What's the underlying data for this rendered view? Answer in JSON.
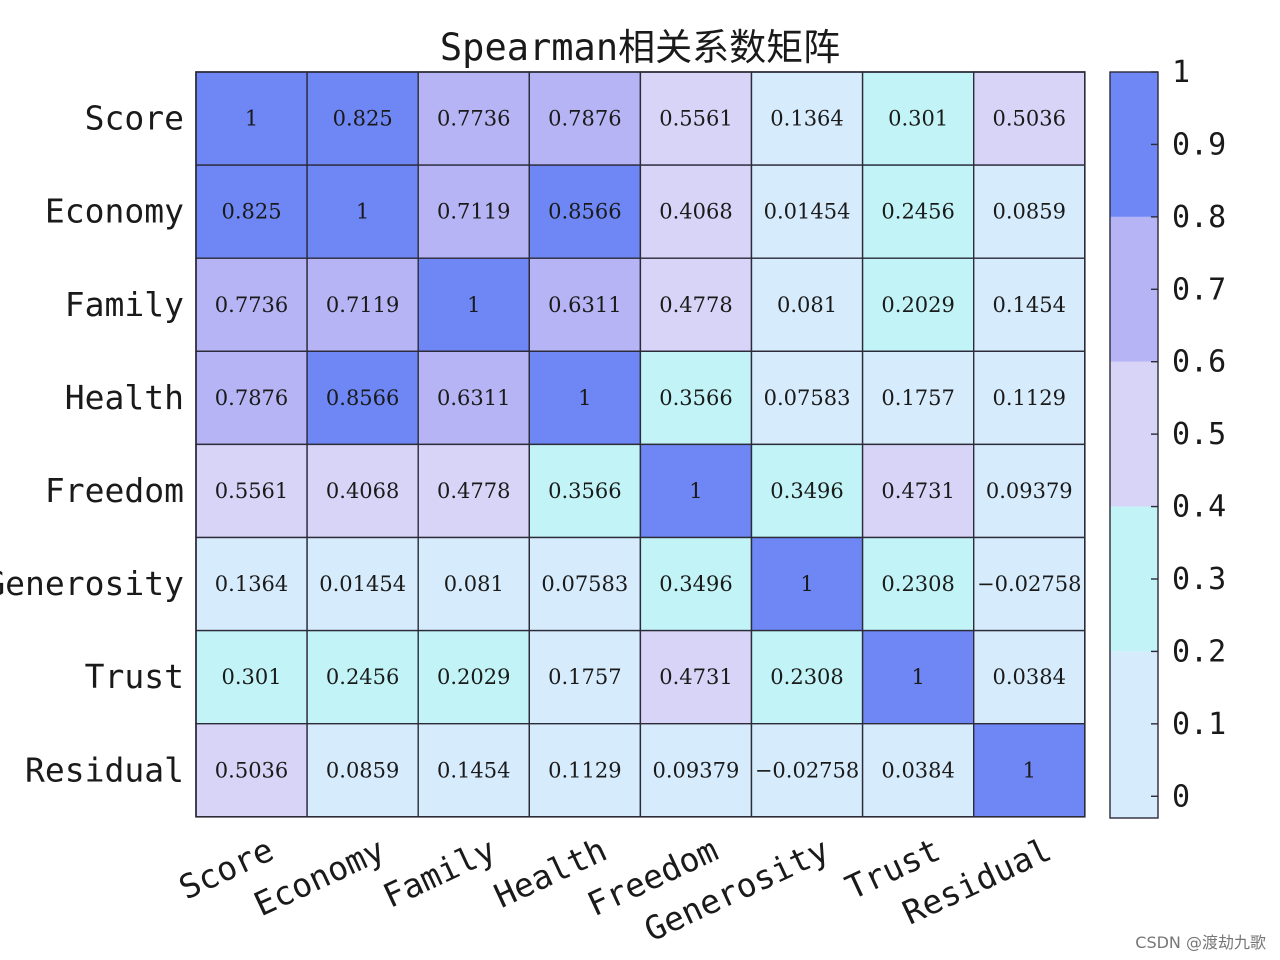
{
  "chart_data": {
    "type": "heatmap",
    "title": "Spearman相关系数矩阵",
    "rows": [
      "Score",
      "Economy",
      "Family",
      "Health",
      "Freedom",
      "Generosity",
      "Trust",
      "Residual"
    ],
    "columns": [
      "Score",
      "Economy",
      "Family",
      "Health",
      "Freedom",
      "Generosity",
      "Trust",
      "Residual"
    ],
    "values": [
      [
        1,
        0.825,
        0.7736,
        0.7876,
        0.5561,
        0.1364,
        0.301,
        0.5036
      ],
      [
        0.825,
        1,
        0.7119,
        0.8566,
        0.4068,
        0.01454,
        0.2456,
        0.0859
      ],
      [
        0.7736,
        0.7119,
        1,
        0.6311,
        0.4778,
        0.081,
        0.2029,
        0.1454
      ],
      [
        0.7876,
        0.8566,
        0.6311,
        1,
        0.3566,
        0.07583,
        0.1757,
        0.1129
      ],
      [
        0.5561,
        0.4068,
        0.4778,
        0.3566,
        1,
        0.3496,
        0.4731,
        0.09379
      ],
      [
        0.1364,
        0.01454,
        0.081,
        0.07583,
        0.3496,
        1,
        0.2308,
        -0.02758
      ],
      [
        0.301,
        0.2456,
        0.2029,
        0.1757,
        0.4731,
        0.2308,
        1,
        0.0384
      ],
      [
        0.5036,
        0.0859,
        0.1454,
        0.1129,
        0.09379,
        -0.02758,
        0.0384,
        1
      ]
    ],
    "display_values": [
      [
        "1",
        "0.825",
        "0.7736",
        "0.7876",
        "0.5561",
        "0.1364",
        "0.301",
        "0.5036"
      ],
      [
        "0.825",
        "1",
        "0.7119",
        "0.8566",
        "0.4068",
        "0.01454",
        "0.2456",
        "0.0859"
      ],
      [
        "0.7736",
        "0.7119",
        "1",
        "0.6311",
        "0.4778",
        "0.081",
        "0.2029",
        "0.1454"
      ],
      [
        "0.7876",
        "0.8566",
        "0.6311",
        "1",
        "0.3566",
        "0.07583",
        "0.1757",
        "0.1129"
      ],
      [
        "0.5561",
        "0.4068",
        "0.4778",
        "0.3566",
        "1",
        "0.3496",
        "0.4731",
        "0.09379"
      ],
      [
        "0.1364",
        "0.01454",
        "0.081",
        "0.07583",
        "0.3496",
        "1",
        "0.2308",
        "−0.02758"
      ],
      [
        "0.301",
        "0.2456",
        "0.2029",
        "0.1757",
        "0.4731",
        "0.2308",
        "1",
        "0.0384"
      ],
      [
        "0.5036",
        "0.0859",
        "0.1454",
        "0.1129",
        "0.09379",
        "−0.02758",
        "0.0384",
        "1"
      ]
    ],
    "colorbar": {
      "range": [
        -0.03,
        1
      ],
      "ticks": [
        0,
        0.1,
        0.2,
        0.3,
        0.4,
        0.5,
        0.6,
        0.7,
        0.8,
        0.9,
        1
      ],
      "tick_labels": [
        "0",
        "0.1",
        "0.2",
        "0.3",
        "0.4",
        "0.5",
        "0.6",
        "0.7",
        "0.8",
        "0.9",
        "1"
      ],
      "bins": [
        {
          "from": -0.03,
          "to": 0.2,
          "color": "#d6ebfb"
        },
        {
          "from": 0.2,
          "to": 0.4,
          "color": "#c2f4f7"
        },
        {
          "from": 0.4,
          "to": 0.6,
          "color": "#d7d4f7"
        },
        {
          "from": 0.6,
          "to": 0.8,
          "color": "#b6b4f4"
        },
        {
          "from": 0.8,
          "to": 1.0,
          "color": "#6e87f4"
        }
      ],
      "placement": "right"
    },
    "grid": true
  },
  "watermark": "CSDN @渡劫九歌"
}
